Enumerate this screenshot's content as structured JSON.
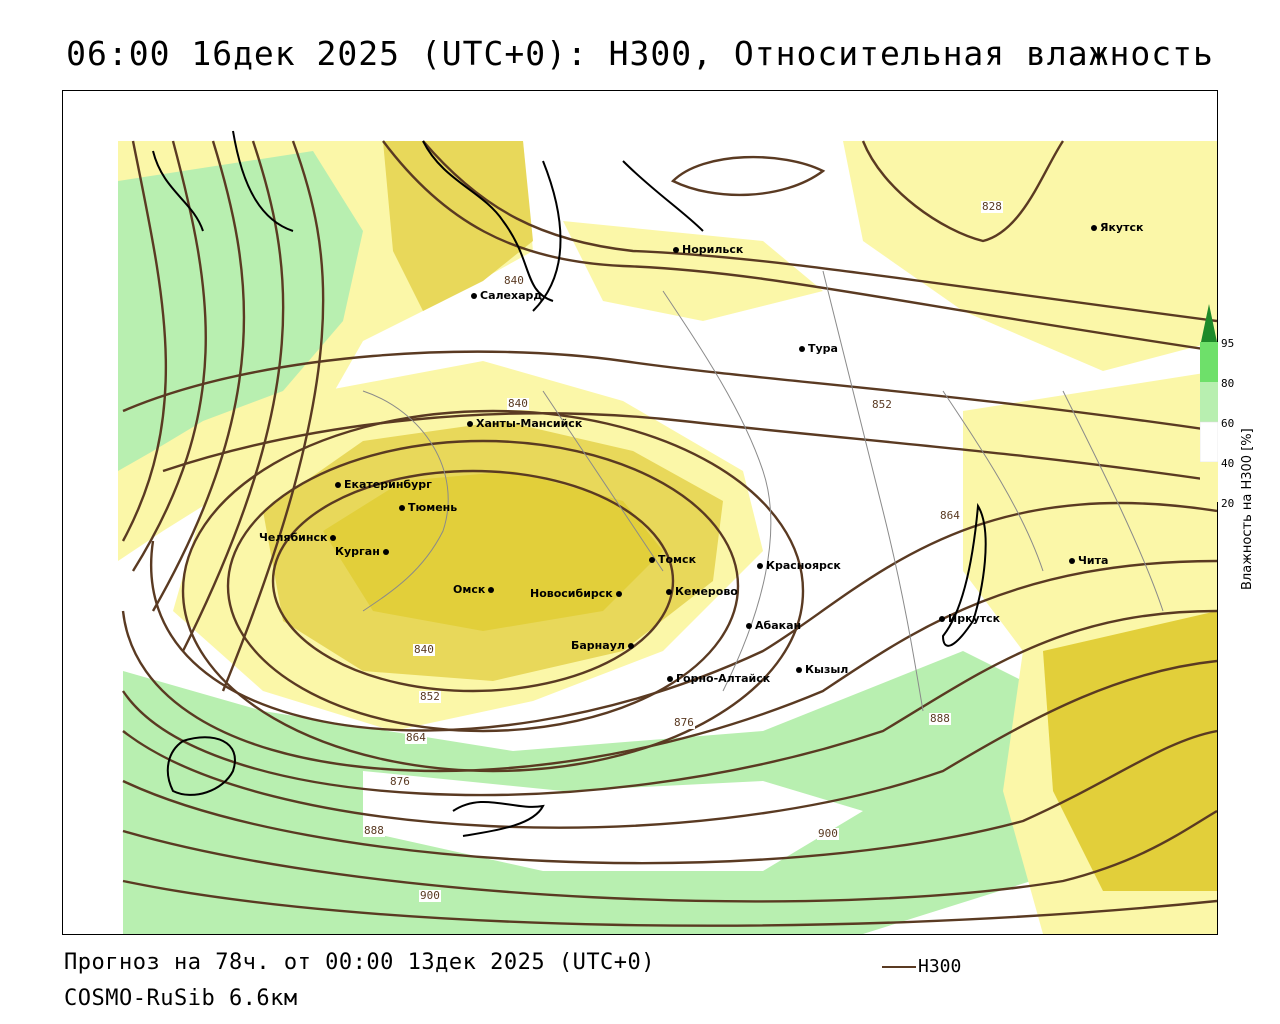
{
  "header": {
    "title": "06:00 16дек 2025 (UTC+0): H300, Относительная влажность"
  },
  "footer": {
    "forecast": "Прогноз на 78ч. от 00:00 13дек 2025 (UTC+0)",
    "model": "COSMO-RuSib 6.6км",
    "legend_h300": "H300"
  },
  "colors": {
    "rh_20_40": "#fbf7a8",
    "rh_40_60": "#eee489",
    "rh_60_80": "#b8efb0",
    "rh_80_95": "#6ee06a",
    "rh_95": "#1e8a2a",
    "contour": "#5a3a22",
    "high_humidity_yellow": "#e2cf3a"
  },
  "colorbar": {
    "title": "Влажность на H300 [%]",
    "ticks": [
      "95",
      "80",
      "60",
      "40",
      "20"
    ]
  },
  "cities": {
    "norilsk": "Норильск",
    "yakutsk": "Якутск",
    "salekhard": "Салехард",
    "tura": "Тура",
    "khanty": "Ханты-Мансийск",
    "ekaterinburg": "Екатеринбург",
    "tyumen": "Тюмень",
    "chelyabinsk": "Челябинск",
    "kurgan": "Курган",
    "omsk": "Омск",
    "novosibirsk": "Новосибирск",
    "tomsk": "Томск",
    "kemerovo": "Кемерово",
    "krasnoyarsk": "Красноярск",
    "barnaul": "Барнаул",
    "abakan": "Абакан",
    "gorno": "Горно-Алтайск",
    "kyzyl": "Кызыл",
    "irkutsk": "Иркутск",
    "chita": "Чита"
  },
  "contour_labels": {
    "l828": "828",
    "l840a": "840",
    "l840b": "840",
    "l840c": "840",
    "l852a": "852",
    "l852b": "852",
    "l864a": "864",
    "l864b": "864",
    "l876a": "876",
    "l876b": "876",
    "l888a": "888",
    "l888b": "888",
    "l900a": "900",
    "l900b": "900"
  }
}
